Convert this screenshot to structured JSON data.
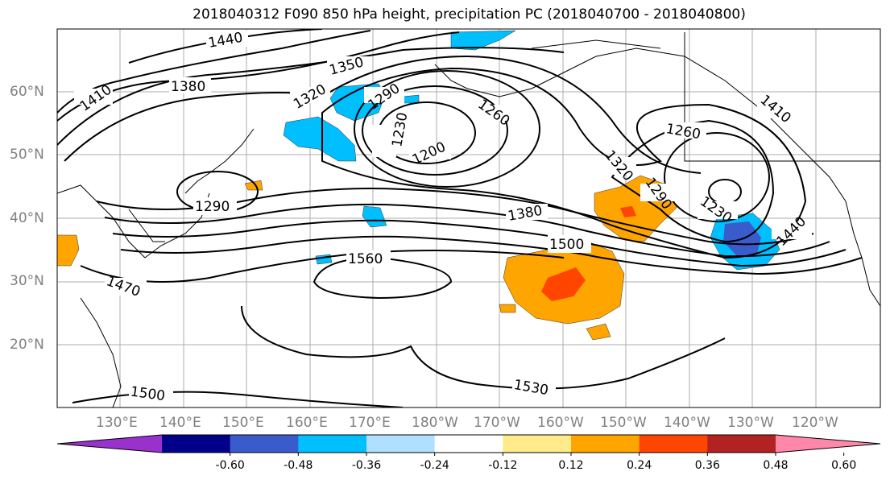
{
  "title": "2018040312 F090 850 hPa height, precipitation PC (2018040700 - 2018040800)",
  "lat_labels": [
    "60°N",
    "50°N",
    "40°N",
    "30°N",
    "20°N"
  ],
  "lon_labels": [
    "130°E",
    "140°E",
    "150°E",
    "160°E",
    "170°E",
    "180°W",
    "170°W",
    "160°W",
    "150°W",
    "140°W",
    "130°W",
    "120°W"
  ],
  "contour_labels": [
    "1440",
    "1410",
    "1380",
    "1350",
    "1320",
    "1290",
    "1230",
    "1200",
    "1260",
    "1260",
    "1320",
    "1290",
    "1410",
    "1290",
    "1380",
    "1500",
    "1560",
    "1470",
    "1230",
    "1440",
    "1500",
    "1530"
  ],
  "colorbar": {
    "colors": [
      "#9932CC",
      "#00008B",
      "#3A5BCC",
      "#00BFFF",
      "#B0E0FF",
      "#FFFFFF",
      "#FFEB8A",
      "#FFA500",
      "#FF4500",
      "#B22222",
      "#FF88AA"
    ],
    "labels": [
      "-0.60",
      "-0.48",
      "-0.36",
      "-0.24",
      "-0.12",
      "0.12",
      "0.24",
      "0.36",
      "0.48",
      "0.60"
    ]
  }
}
